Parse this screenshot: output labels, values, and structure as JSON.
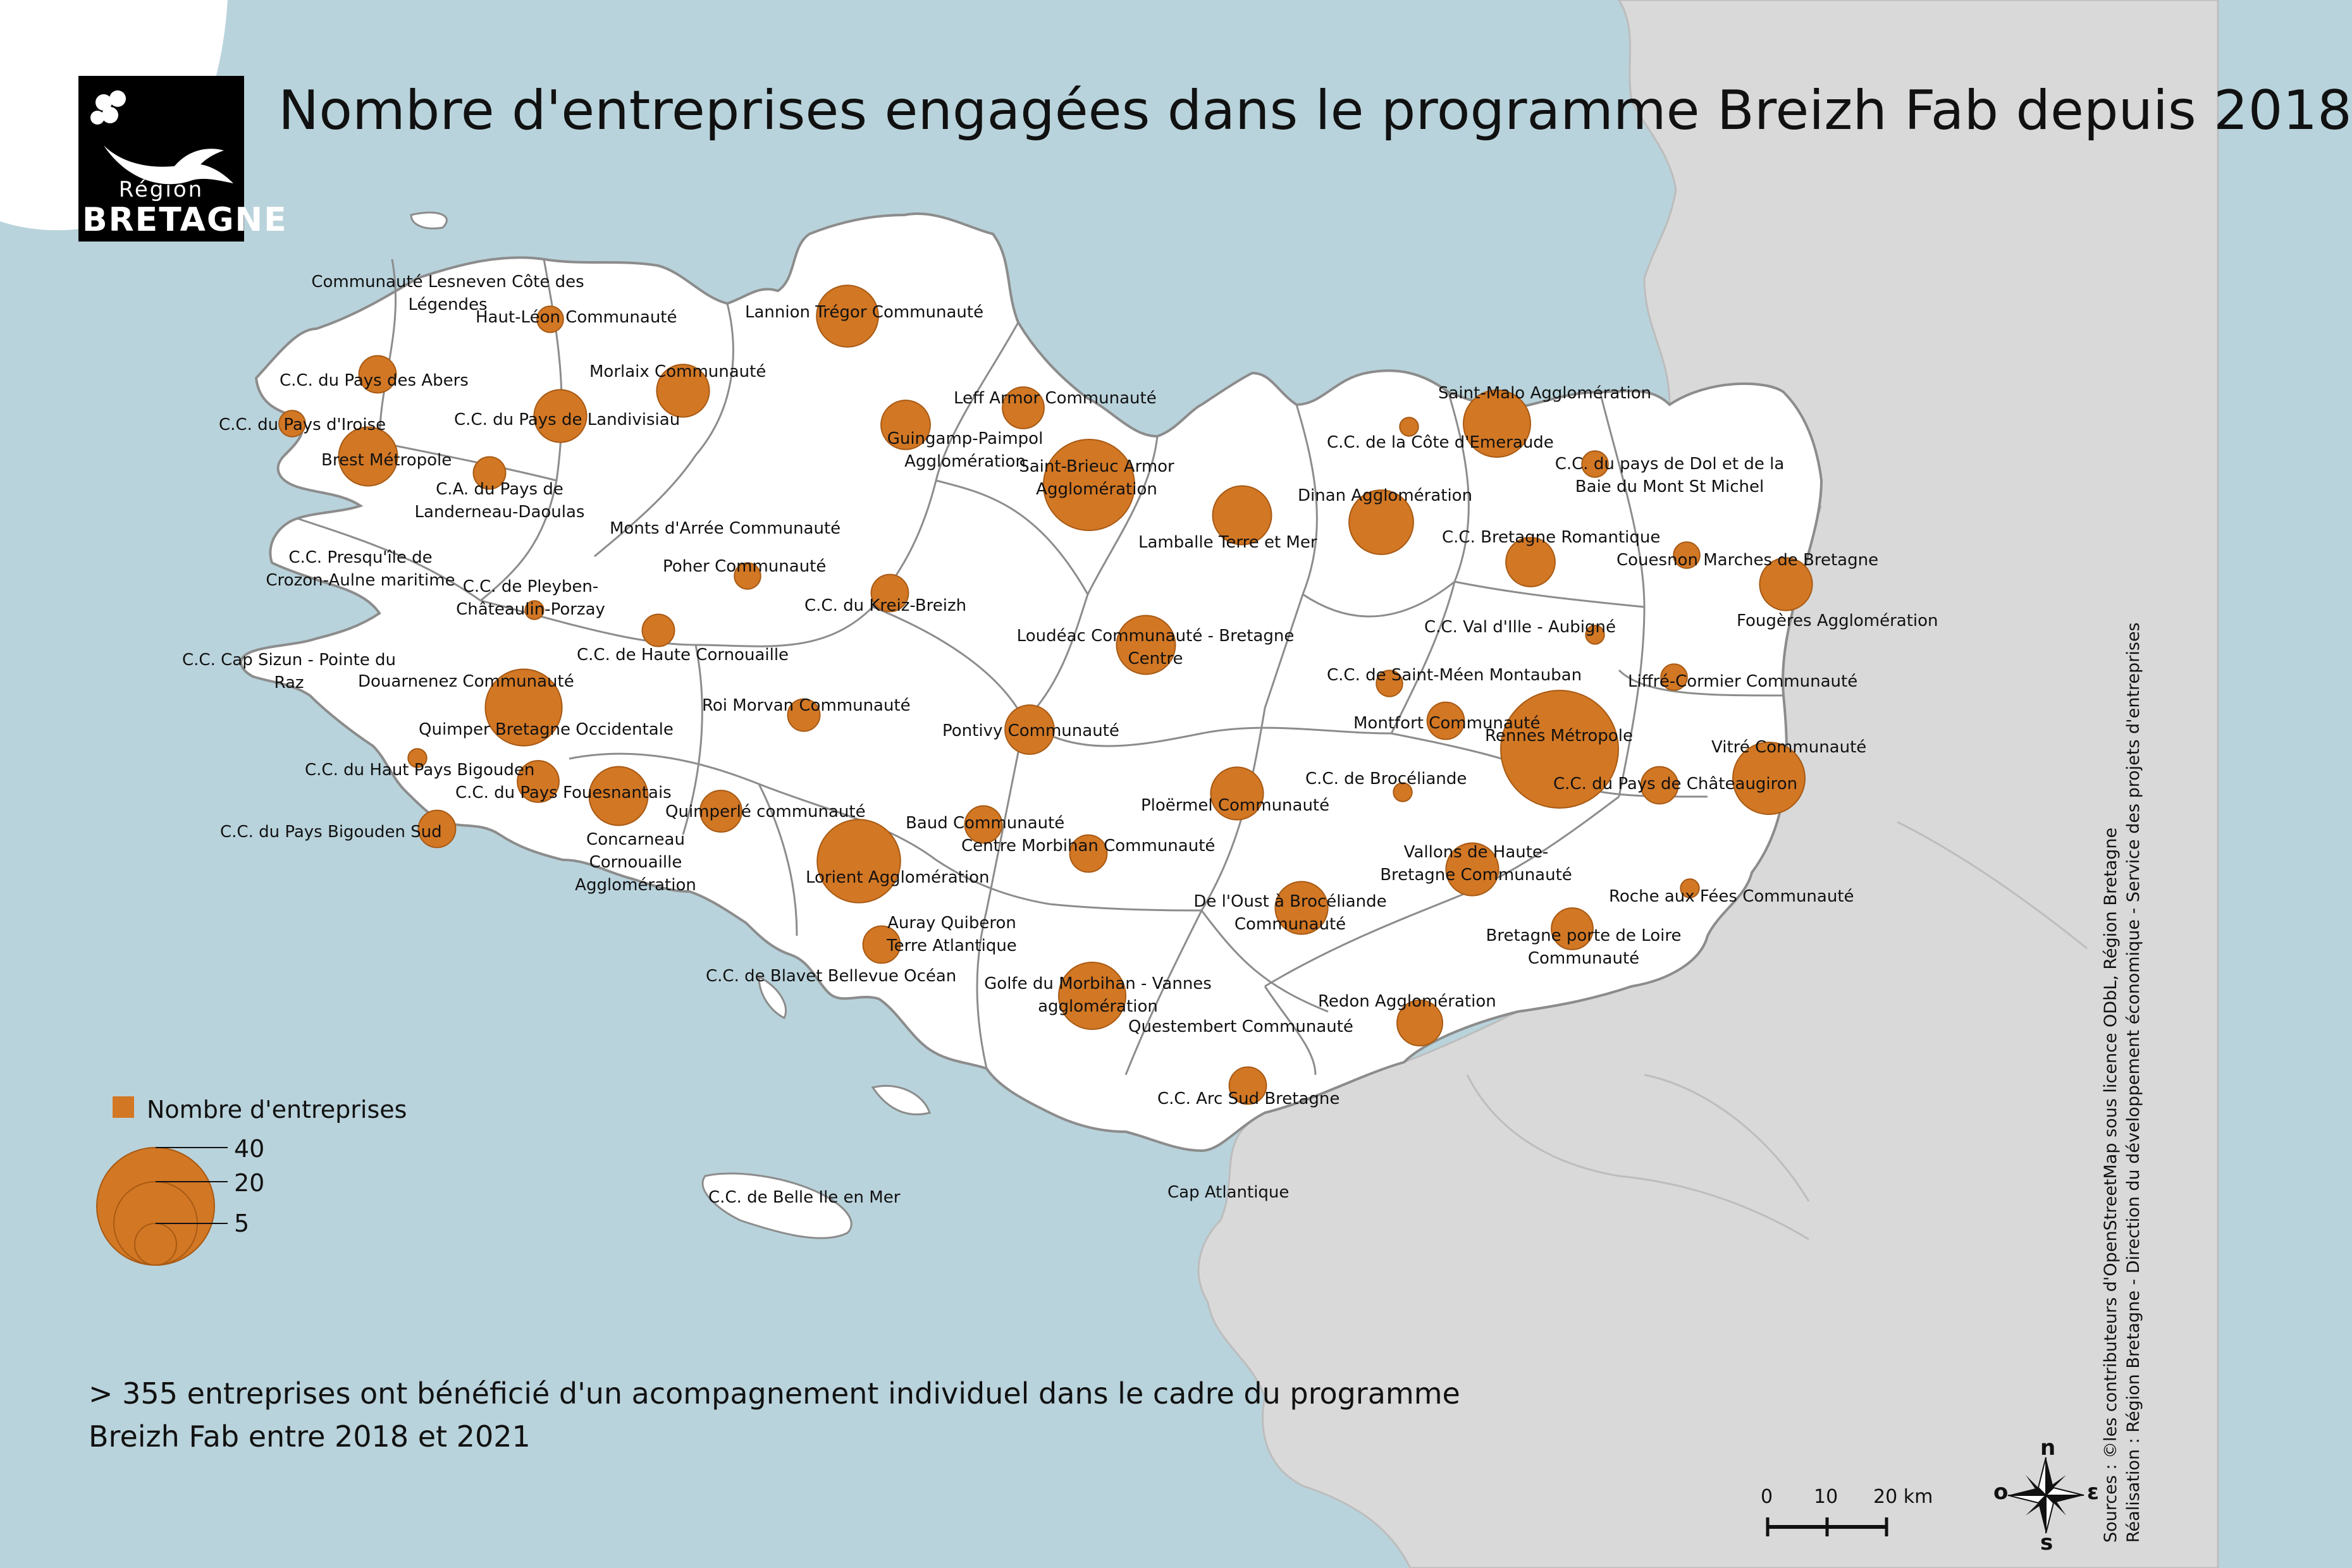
{
  "title": "Nombre d'entreprises engagées dans le programme Breizh Fab depuis 2018",
  "logo": {
    "region": "Région",
    "name": "BRETAGNE"
  },
  "colors": {
    "sea": "#b9d3dc",
    "neighbor_land": "#d9d9d9",
    "region_land": "#ffffff",
    "boundary": "#8c8c8c",
    "bubble": "#d27724",
    "bubble_edge": "#a85a14"
  },
  "unit_label": "Nombre d'entreprises",
  "legend_values": [
    "40",
    "20",
    "5"
  ],
  "note": "> 355 entreprises ont bénéficié d'un acompagnement individuel dans le cadre du programme Breizh Fab entre 2018 et 2021",
  "sources": [
    "Sources : ©les contributeurs d'OpenStreetMap sous licence ODbL, Région Bretagne",
    "Réalisation : Région Bretagne - Direction du développement économique - Service des projets d'entreprises"
  ],
  "scale": {
    "labels": [
      "0",
      "10",
      "20 km"
    ]
  },
  "compass": {
    "n": "n",
    "s": "s",
    "e": "ɛ",
    "o": "o"
  },
  "territories": [
    {
      "label": "Communauté Lesneven Côte des Légendes",
      "value": null
    },
    {
      "label": "Haut-Léon Communauté",
      "value": 2
    },
    {
      "label": "Lannion Trégor Communauté",
      "value": 11
    },
    {
      "label": "C.C. du Pays des Abers",
      "value": 4
    },
    {
      "label": "Morlaix Communauté",
      "value": 8
    },
    {
      "label": "Leff Armor Communauté",
      "value": 5
    },
    {
      "label": "C.C. du Pays d'Iroise",
      "value": 2
    },
    {
      "label": "C.C. du Pays de Landivisiau",
      "value": 8
    },
    {
      "label": "Guingamp-Paimpol Agglomération",
      "value": 7
    },
    {
      "label": "Saint-Malo Agglomération",
      "value": 13
    },
    {
      "label": "C.C. de la Côte d'Emeraude",
      "value": 1
    },
    {
      "label": "Brest Métropole",
      "value": 10
    },
    {
      "label": "Saint-Brieuc Armor Agglomération",
      "value": 24
    },
    {
      "label": "C.C. du pays de Dol et de la Baie du Mont St Michel",
      "value": 2
    },
    {
      "label": "C.A. du Pays de Landerneau-Daoulas",
      "value": 3
    },
    {
      "label": "Dinan Agglomération",
      "value": 12
    },
    {
      "label": "Lamballe Terre et Mer",
      "value": 10
    },
    {
      "label": "Monts d'Arrée Communauté",
      "value": null
    },
    {
      "label": "C.C. Bretagne Romantique",
      "value": 7
    },
    {
      "label": "C.C. Presqu'île de Crozon-Aulne maritime",
      "value": null
    },
    {
      "label": "Couesnon Marches de Bretagne",
      "value": 2
    },
    {
      "label": "Poher Communauté",
      "value": 2
    },
    {
      "label": "C.C. de Pleyben-Châteaulin-Porzay",
      "value": 1
    },
    {
      "label": "C.C. du Kreiz-Breizh",
      "value": 4
    },
    {
      "label": "Fougères Agglomération",
      "value": 8
    },
    {
      "label": "C.C. Val d'Ille - Aubigné",
      "value": 1
    },
    {
      "label": "C.C. de Haute Cornouaille",
      "value": 3
    },
    {
      "label": "Loudéac Communauté - Bretagne Centre",
      "value": 10
    },
    {
      "label": "C.C. Cap Sizun - Pointe du Raz",
      "value": null
    },
    {
      "label": "Douarnenez Communauté",
      "value": null
    },
    {
      "label": "C.C. de Saint-Méen Montauban",
      "value": 2
    },
    {
      "label": "Liffré-Cormier Communauté",
      "value": 2
    },
    {
      "label": "Roi Morvan Communauté",
      "value": 3
    },
    {
      "label": "Quimper Bretagne Occidentale",
      "value": 17
    },
    {
      "label": "Montfort Communauté",
      "value": 4
    },
    {
      "label": "Rennes Métropole",
      "value": 40
    },
    {
      "label": "Pontivy Communauté",
      "value": 7
    },
    {
      "label": "Vitré Communauté",
      "value": 15
    },
    {
      "label": "C.C. du Haut Pays Bigouden",
      "value": 1
    },
    {
      "label": "C.C. de Brocéliande",
      "value": 1
    },
    {
      "label": "C.C. du Pays de Châteaugiron",
      "value": 4
    },
    {
      "label": "C.C. du Pays Fouesnantais",
      "value": 5
    },
    {
      "label": "Concarneau Cornouaille Agglomération",
      "value": 10
    },
    {
      "label": "Quimperlé communauté",
      "value": 5
    },
    {
      "label": "Baud Communauté",
      "value": 4
    },
    {
      "label": "Ploërmel Communauté",
      "value": 8
    },
    {
      "label": "C.C. du Pays Bigouden Sud",
      "value": 4
    },
    {
      "label": "Centre Morbihan Communauté",
      "value": 4
    },
    {
      "label": "Lorient Agglomération",
      "value": 20
    },
    {
      "label": "Vallons de Haute-Bretagne Communauté",
      "value": 8
    },
    {
      "label": "Roche aux Fées Communauté",
      "value": 1
    },
    {
      "label": "De l'Oust à Brocéliande Communauté",
      "value": 8
    },
    {
      "label": "Auray Quiberon Terre Atlantique",
      "value": 4
    },
    {
      "label": "Bretagne porte de Loire Communauté",
      "value": 5
    },
    {
      "label": "C.C. de Blavet Bellevue Océan",
      "value": null
    },
    {
      "label": "Golfe du Morbihan - Vannes agglomération",
      "value": 13
    },
    {
      "label": "Redon Agglomération",
      "value": 6
    },
    {
      "label": "Questembert Communauté",
      "value": null
    },
    {
      "label": "C.C. Arc Sud Bretagne",
      "value": 4
    },
    {
      "label": "C.C. de Belle Ile en Mer",
      "value": null
    },
    {
      "label": "Cap Atlantique",
      "value": null
    }
  ]
}
